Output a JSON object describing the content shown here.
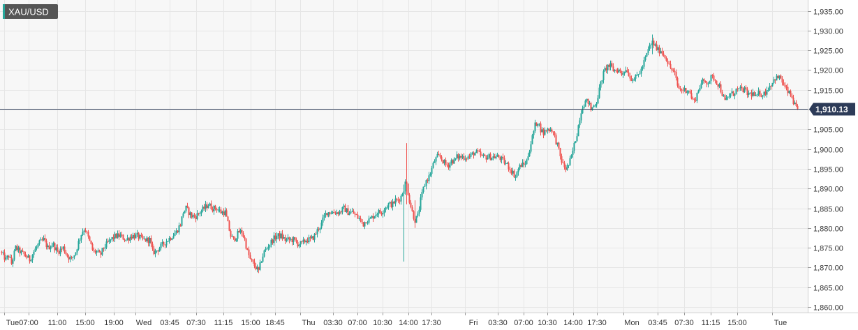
{
  "symbol": "XAU/USD",
  "colors": {
    "up": "#26a69a",
    "down": "#ef5350",
    "grid": "#e6e6e6",
    "price_line": "#2d3b58",
    "badge_bg": "#2d3b58",
    "symbol_bg": "#555555",
    "plot_bg": "#f7f7f7"
  },
  "chart_data": {
    "type": "candlestick",
    "y_ticks": [
      "1,860.00",
      "1,865.00",
      "1,870.00",
      "1,875.00",
      "1,880.00",
      "1,885.00",
      "1,890.00",
      "1,895.00",
      "1,900.00",
      "1,905.00",
      "1,910.00",
      "1,915.00",
      "1,920.00",
      "1,925.00",
      "1,930.00",
      "1,935.00"
    ],
    "ylim": [
      1858.5,
      1937.5
    ],
    "x_ticks": [
      "Tue",
      "07:00",
      "11:00",
      "15:00",
      "19:00",
      "Wed",
      "03:45",
      "07:30",
      "11:15",
      "15:00",
      "18:45",
      "Thu",
      "03:30",
      "07:00",
      "10:30",
      "14:00",
      "17:30",
      "Fri",
      "03:30",
      "07:00",
      "10:30",
      "14:00",
      "17:30",
      "Mon",
      "03:45",
      "07:30",
      "11:15",
      "15:00",
      "Tue"
    ],
    "day_separators": [
      "Wed",
      "Thu",
      "Fri",
      "Mon",
      "Tue"
    ],
    "last_price": 1910.13,
    "last_price_label": "1,910.13",
    "path": [
      [
        0,
        1874
      ],
      [
        8,
        1872
      ],
      [
        12,
        1873
      ],
      [
        16,
        1871
      ],
      [
        22,
        1875
      ],
      [
        28,
        1874
      ],
      [
        36,
        1873
      ],
      [
        42,
        1872
      ],
      [
        48,
        1874
      ],
      [
        55,
        1876
      ],
      [
        62,
        1877
      ],
      [
        68,
        1875
      ],
      [
        75,
        1876
      ],
      [
        82,
        1874
      ],
      [
        90,
        1875
      ],
      [
        96,
        1873
      ],
      [
        102,
        1872
      ],
      [
        108,
        1874
      ],
      [
        113,
        1877
      ],
      [
        117,
        1879
      ],
      [
        121,
        1880
      ],
      [
        125,
        1878
      ],
      [
        129,
        1876
      ],
      [
        133,
        1874
      ],
      [
        138,
        1874
      ],
      [
        143,
        1873
      ],
      [
        148,
        1875
      ],
      [
        153,
        1876
      ],
      [
        158,
        1877
      ],
      [
        165,
        1878
      ],
      [
        172,
        1878
      ],
      [
        180,
        1877
      ],
      [
        188,
        1878
      ],
      [
        196,
        1878
      ],
      [
        204,
        1877
      ],
      [
        210,
        1877
      ],
      [
        214,
        1877
      ],
      [
        218,
        1874
      ],
      [
        222,
        1874
      ],
      [
        228,
        1875
      ],
      [
        234,
        1876
      ],
      [
        240,
        1877
      ],
      [
        246,
        1878
      ],
      [
        252,
        1879
      ],
      [
        258,
        1881
      ],
      [
        262,
        1884
      ],
      [
        266,
        1885
      ],
      [
        270,
        1884
      ],
      [
        274,
        1883
      ],
      [
        280,
        1883
      ],
      [
        286,
        1884
      ],
      [
        292,
        1885
      ],
      [
        298,
        1886
      ],
      [
        304,
        1885
      ],
      [
        310,
        1885
      ],
      [
        316,
        1884
      ],
      [
        322,
        1884
      ],
      [
        326,
        1881
      ],
      [
        330,
        1878
      ],
      [
        334,
        1877
      ],
      [
        338,
        1878
      ],
      [
        342,
        1879
      ],
      [
        346,
        1879
      ],
      [
        350,
        1877
      ],
      [
        354,
        1874
      ],
      [
        358,
        1872
      ],
      [
        362,
        1871
      ],
      [
        366,
        1870
      ],
      [
        370,
        1869
      ],
      [
        374,
        1872
      ],
      [
        378,
        1874
      ],
      [
        382,
        1875
      ],
      [
        386,
        1876
      ],
      [
        390,
        1877
      ],
      [
        396,
        1878
      ],
      [
        402,
        1878
      ],
      [
        408,
        1877
      ],
      [
        414,
        1877
      ],
      [
        420,
        1877
      ],
      [
        426,
        1876
      ],
      [
        432,
        1876
      ],
      [
        438,
        1877
      ],
      [
        444,
        1877
      ],
      [
        450,
        1878
      ],
      [
        456,
        1880
      ],
      [
        460,
        1881
      ],
      [
        464,
        1883
      ],
      [
        468,
        1884
      ],
      [
        474,
        1884
      ],
      [
        480,
        1884
      ],
      [
        486,
        1884
      ],
      [
        492,
        1885
      ],
      [
        498,
        1884
      ],
      [
        504,
        1884
      ],
      [
        510,
        1883
      ],
      [
        516,
        1882
      ],
      [
        520,
        1881
      ],
      [
        524,
        1882
      ],
      [
        528,
        1882
      ],
      [
        534,
        1883
      ],
      [
        540,
        1884
      ],
      [
        546,
        1884
      ],
      [
        550,
        1885
      ],
      [
        556,
        1886
      ],
      [
        562,
        1886
      ],
      [
        566,
        1887
      ],
      [
        570,
        1887
      ],
      [
        574,
        1888
      ],
      [
        578,
        1890
      ],
      [
        581,
        1892
      ],
      [
        583,
        1890
      ],
      [
        586,
        1887
      ],
      [
        590,
        1884
      ],
      [
        594,
        1882
      ],
      [
        598,
        1883
      ],
      [
        602,
        1887
      ],
      [
        606,
        1890
      ],
      [
        610,
        1892
      ],
      [
        614,
        1893
      ],
      [
        618,
        1895
      ],
      [
        622,
        1897
      ],
      [
        626,
        1898
      ],
      [
        630,
        1898
      ],
      [
        634,
        1897
      ],
      [
        638,
        1896
      ],
      [
        642,
        1896
      ],
      [
        646,
        1897
      ],
      [
        650,
        1897
      ],
      [
        654,
        1898
      ],
      [
        660,
        1898
      ],
      [
        666,
        1898
      ],
      [
        672,
        1898
      ],
      [
        678,
        1899
      ],
      [
        684,
        1899
      ],
      [
        690,
        1898
      ],
      [
        696,
        1898
      ],
      [
        702,
        1898
      ],
      [
        708,
        1898
      ],
      [
        714,
        1898
      ],
      [
        720,
        1897
      ],
      [
        726,
        1896
      ],
      [
        730,
        1895
      ],
      [
        734,
        1894
      ],
      [
        738,
        1893
      ],
      [
        742,
        1895
      ],
      [
        746,
        1896
      ],
      [
        750,
        1896
      ],
      [
        754,
        1897
      ],
      [
        758,
        1900
      ],
      [
        762,
        1903
      ],
      [
        766,
        1906
      ],
      [
        770,
        1907
      ],
      [
        774,
        1905
      ],
      [
        778,
        1904
      ],
      [
        782,
        1905
      ],
      [
        786,
        1905
      ],
      [
        790,
        1905
      ],
      [
        794,
        1903
      ],
      [
        798,
        1901
      ],
      [
        802,
        1898
      ],
      [
        806,
        1896
      ],
      [
        810,
        1895
      ],
      [
        814,
        1896
      ],
      [
        818,
        1898
      ],
      [
        822,
        1901
      ],
      [
        826,
        1904
      ],
      [
        830,
        1908
      ],
      [
        834,
        1911
      ],
      [
        838,
        1912
      ],
      [
        842,
        1912
      ],
      [
        846,
        1910
      ],
      [
        850,
        1911
      ],
      [
        854,
        1912
      ],
      [
        858,
        1915
      ],
      [
        862,
        1918
      ],
      [
        866,
        1920
      ],
      [
        870,
        1921
      ],
      [
        874,
        1921
      ],
      [
        878,
        1920
      ],
      [
        882,
        1920
      ],
      [
        886,
        1920
      ],
      [
        890,
        1919
      ],
      [
        894,
        1920
      ],
      [
        898,
        1920
      ],
      [
        902,
        1918
      ],
      [
        906,
        1918
      ],
      [
        910,
        1918
      ],
      [
        914,
        1919
      ],
      [
        918,
        1920
      ],
      [
        922,
        1922
      ],
      [
        926,
        1924
      ],
      [
        930,
        1926
      ],
      [
        934,
        1927
      ],
      [
        938,
        1926
      ],
      [
        942,
        1925
      ],
      [
        946,
        1925
      ],
      [
        950,
        1924
      ],
      [
        954,
        1923
      ],
      [
        958,
        1921
      ],
      [
        962,
        1920
      ],
      [
        966,
        1919
      ],
      [
        970,
        1916
      ],
      [
        974,
        1915
      ],
      [
        978,
        1915
      ],
      [
        982,
        1915
      ],
      [
        986,
        1915
      ],
      [
        990,
        1913
      ],
      [
        994,
        1912
      ],
      [
        998,
        1914
      ],
      [
        1002,
        1916
      ],
      [
        1006,
        1917
      ],
      [
        1010,
        1917
      ],
      [
        1014,
        1917
      ],
      [
        1018,
        1918
      ],
      [
        1022,
        1918
      ],
      [
        1026,
        1917
      ],
      [
        1030,
        1916
      ],
      [
        1034,
        1914
      ],
      [
        1038,
        1912
      ],
      [
        1042,
        1913
      ],
      [
        1046,
        1914
      ],
      [
        1050,
        1914
      ],
      [
        1054,
        1915
      ],
      [
        1058,
        1915
      ],
      [
        1062,
        1915
      ],
      [
        1066,
        1915
      ],
      [
        1070,
        1914
      ],
      [
        1074,
        1914
      ],
      [
        1078,
        1914
      ],
      [
        1082,
        1913
      ],
      [
        1086,
        1914
      ],
      [
        1090,
        1914
      ],
      [
        1094,
        1914
      ],
      [
        1098,
        1915
      ],
      [
        1102,
        1916
      ],
      [
        1106,
        1917
      ],
      [
        1110,
        1918
      ],
      [
        1114,
        1918
      ],
      [
        1118,
        1918
      ],
      [
        1122,
        1916
      ],
      [
        1126,
        1915
      ],
      [
        1130,
        1914
      ],
      [
        1134,
        1913
      ],
      [
        1138,
        1911
      ],
      [
        1142,
        1910.13
      ]
    ],
    "spikes": [
      {
        "at": 578,
        "low": 1871.5,
        "high": 1891
      },
      {
        "at": 582,
        "low": 1886,
        "high": 1901.5
      },
      {
        "at": 594,
        "low": 1880,
        "high": 1887
      },
      {
        "at": 934,
        "low": 1924,
        "high": 1929
      }
    ]
  }
}
